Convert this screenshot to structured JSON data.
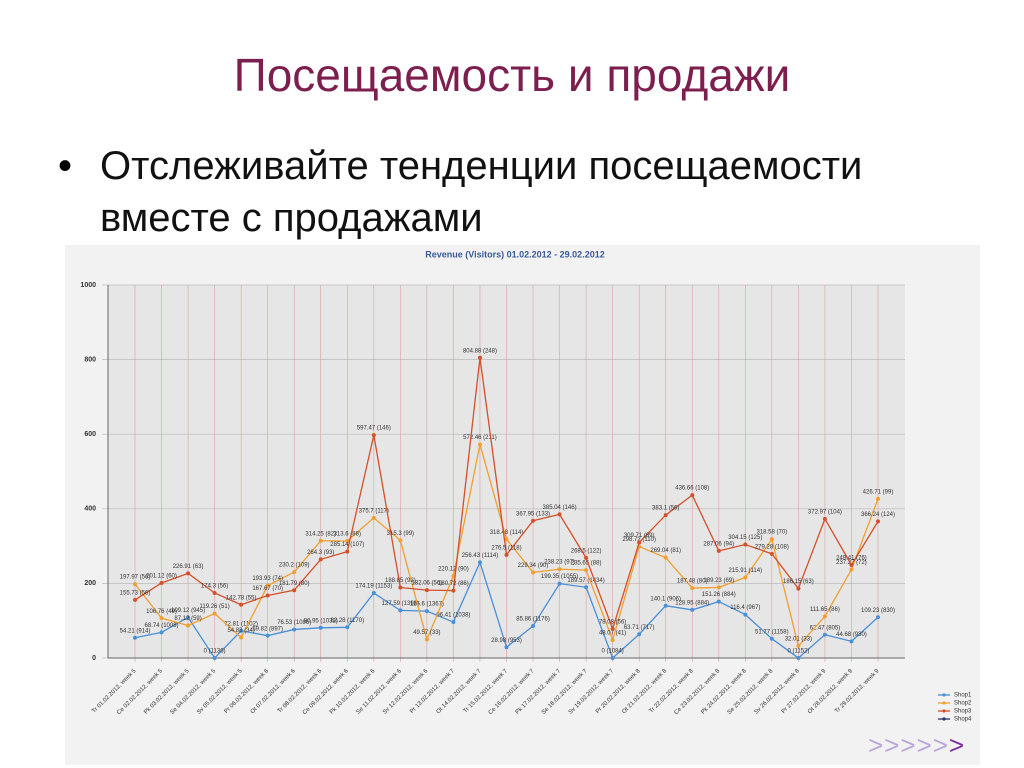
{
  "slide": {
    "title": "Посещаемость и продажи",
    "bullet": "Отслеживайте тенденции посещаемости вместе с продажами",
    "nav_arrows": ">>>>>",
    "nav_arrow_last": ">"
  },
  "chart_data": {
    "type": "line",
    "title": "Revenue (Visitors) 01.02.2012 - 29.02.2012",
    "categories": [
      "Tr 01.02.2012, week 5",
      "Ce 02.02.2012, week 5",
      "Pk 03.02.2012, week 5",
      "Se 04.02.2012, week 5",
      "Sv 05.02.2012, week 5",
      "Pr 06.02.2012, week 6",
      "Ot 07.02.2012, week 6",
      "Tr 08.02.2012, week 6",
      "Ce 09.02.2012, week 6",
      "Pk 10.02.2012, week 6",
      "Se 11.02.2012, week 6",
      "Sv 12.02.2012, week 6",
      "Pr 13.02.2012, week 7",
      "Ot 14.02.2012, week 7",
      "Tr 15.02.2012, week 7",
      "Ce 16.02.2012, week 7",
      "Pk 17.02.2012, week 7",
      "Se 18.02.2012, week 7",
      "Sv 19.02.2012, week 7",
      "Pr 20.02.2012, week 8",
      "Ot 21.02.2012, week 8",
      "Tr 22.02.2012, week 8",
      "Ce 23.02.2012, week 8",
      "Pk 24.02.2012, week 8",
      "Se 25.02.2012, week 8",
      "Sv 26.02.2012, week 8",
      "Pr 27.02.2012, week 9",
      "Ot 28.02.2012, week 9",
      "Tr 29.02.2012, week 9"
    ],
    "ylim": [
      0,
      1000
    ],
    "yticks": [
      0,
      200,
      400,
      600,
      800,
      1000
    ],
    "grid": true,
    "series": [
      {
        "name": "Shop1",
        "color": "#4a8fd8",
        "values": [
          54.21,
          68.74,
          109.12,
          0,
          72.81,
          59.82,
          76.53,
          80.95,
          82.28,
          174.19,
          127.59,
          125.6,
          96.41,
          256.43,
          28.98,
          85.86,
          199.35,
          189.57,
          0,
          63.71,
          140.1,
          128.95,
          151.26,
          116.4,
          51.77,
          0,
          62.47,
          44.68,
          109.23
        ],
        "value_labels": [
          "54.21 (914)",
          "68.74 (1008)",
          "109.12 (945)",
          "0 (1136)",
          "72.81 (1102)",
          "59.82 (897)",
          "76.53 (1096)",
          "80.95 (1032)",
          "82.28 (1170)",
          "174.19 (1153)",
          "127.59 (1398)",
          "125.6 (1367)",
          "96.41 (1038)",
          "256.43 (1114)",
          "28.98 (953)",
          "85.86 (1176)",
          "199.35 (1055)",
          "189.57 (1434)",
          "0 (1084)",
          "63.71 (717)",
          "140.1 (906)",
          "128.95 (884)",
          "151.26 (884)",
          "116.4 (967)",
          "51.77 (1158)",
          "0 (1152)",
          "62.47 (805)",
          "44.68 (930)",
          "109.23 (830)"
        ]
      },
      {
        "name": "Shop2",
        "color": "#f0a030",
        "values": [
          197.97,
          106.76,
          87.12,
          119.26,
          54.83,
          193.93,
          230.2,
          314.25,
          313.6,
          375.7,
          315.3,
          49.57,
          220.12,
          572.46,
          318.48,
          229.34,
          238.23,
          235.65,
          48.07,
          298.72,
          269.04,
          187.48,
          189.23,
          215.91,
          318.58,
          32.01,
          111.65,
          237.27,
          426.71
        ],
        "value_labels": [
          "197.97 (56)",
          "106.76 (49)",
          "87.12 (59)",
          "119.26 (51)",
          "54.83 (34)",
          "193.93 (74)",
          "230.2 (109)",
          "314.25 (82)",
          "313.6 (88)",
          "375.7 (117)",
          "315.3 (99)",
          "49.57 (33)",
          "220.12 (90)",
          "572.46 (211)",
          "318.48 (114)",
          "229.34 (90)",
          "238.23 (97)",
          "235.65 (88)",
          "48.07 (41)",
          "298.72 (110)",
          "269.04 (81)",
          "187.48 (80)",
          "189.23 (69)",
          "215.91 (114)",
          "318.58 (70)",
          "32.01 (33)",
          "111.65 (86)",
          "237.27 (72)",
          "426.71 (99)"
        ]
      },
      {
        "name": "Shop3",
        "color": "#d4502a",
        "values": [
          155.73,
          201.12,
          226.91,
          174.3,
          142.78,
          167.67,
          181.79,
          264.3,
          285.14,
          597.47,
          188.85,
          182.06,
          180.72,
          804.88,
          276.5,
          367.95,
          385.04,
          268.5,
          78.08,
          309.71,
          383.1,
          436.66,
          287.06,
          304.15,
          279.28,
          186.15,
          372.97,
          249.41,
          366.24
        ],
        "value_labels": [
          "155.73 (56)",
          "201.12 (60)",
          "226.91 (63)",
          "174.3 (56)",
          "142.78 (55)",
          "167.67 (70)",
          "181.79 (80)",
          "264.3 (93)",
          "285.14 (107)",
          "597.47 (146)",
          "188.85 (92)",
          "182.06 (56)",
          "180.72 (86)",
          "804.88 (248)",
          "276.5 (118)",
          "367.95 (133)",
          "385.04 (146)",
          "268.5 (122)",
          "78.08 (56)",
          "309.71 (89)",
          "383.1 (56)",
          "436.66 (108)",
          "287.06 (94)",
          "304.15 (125)",
          "279.28 (108)",
          "186.15 (63)",
          "372.97 (104)",
          "249.41 (76)",
          "366.24 (124)"
        ]
      },
      {
        "name": "Shop4",
        "color": "#24346e",
        "values": [
          null,
          null,
          null,
          null,
          null,
          null,
          null,
          null,
          null,
          null,
          null,
          null,
          null,
          null,
          null,
          null,
          null,
          null,
          null,
          null,
          null,
          null,
          null,
          null,
          null,
          null,
          null,
          null,
          null
        ]
      }
    ]
  }
}
